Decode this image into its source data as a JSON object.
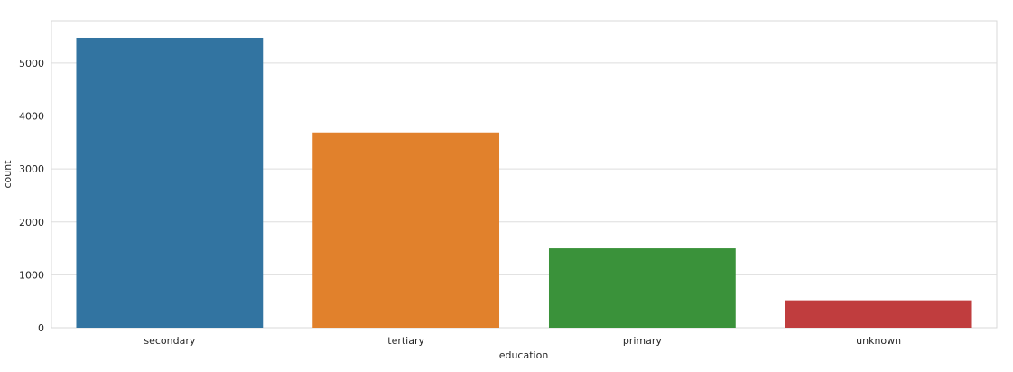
{
  "chart_data": {
    "type": "bar",
    "title": "",
    "xlabel": "education",
    "ylabel": "count",
    "categories": [
      "secondary",
      "tertiary",
      "primary",
      "unknown"
    ],
    "values": [
      5476,
      3689,
      1500,
      518
    ],
    "colors": [
      "#3274a1",
      "#e1812c",
      "#3a923a",
      "#c03d3e"
    ],
    "ylim": [
      0,
      5800
    ],
    "yticks": [
      0,
      1000,
      2000,
      3000,
      4000,
      5000
    ],
    "ytick_labels": [
      "0",
      "1000",
      "2000",
      "3000",
      "4000",
      "5000"
    ],
    "grid": "horizontal",
    "legend": "none"
  }
}
